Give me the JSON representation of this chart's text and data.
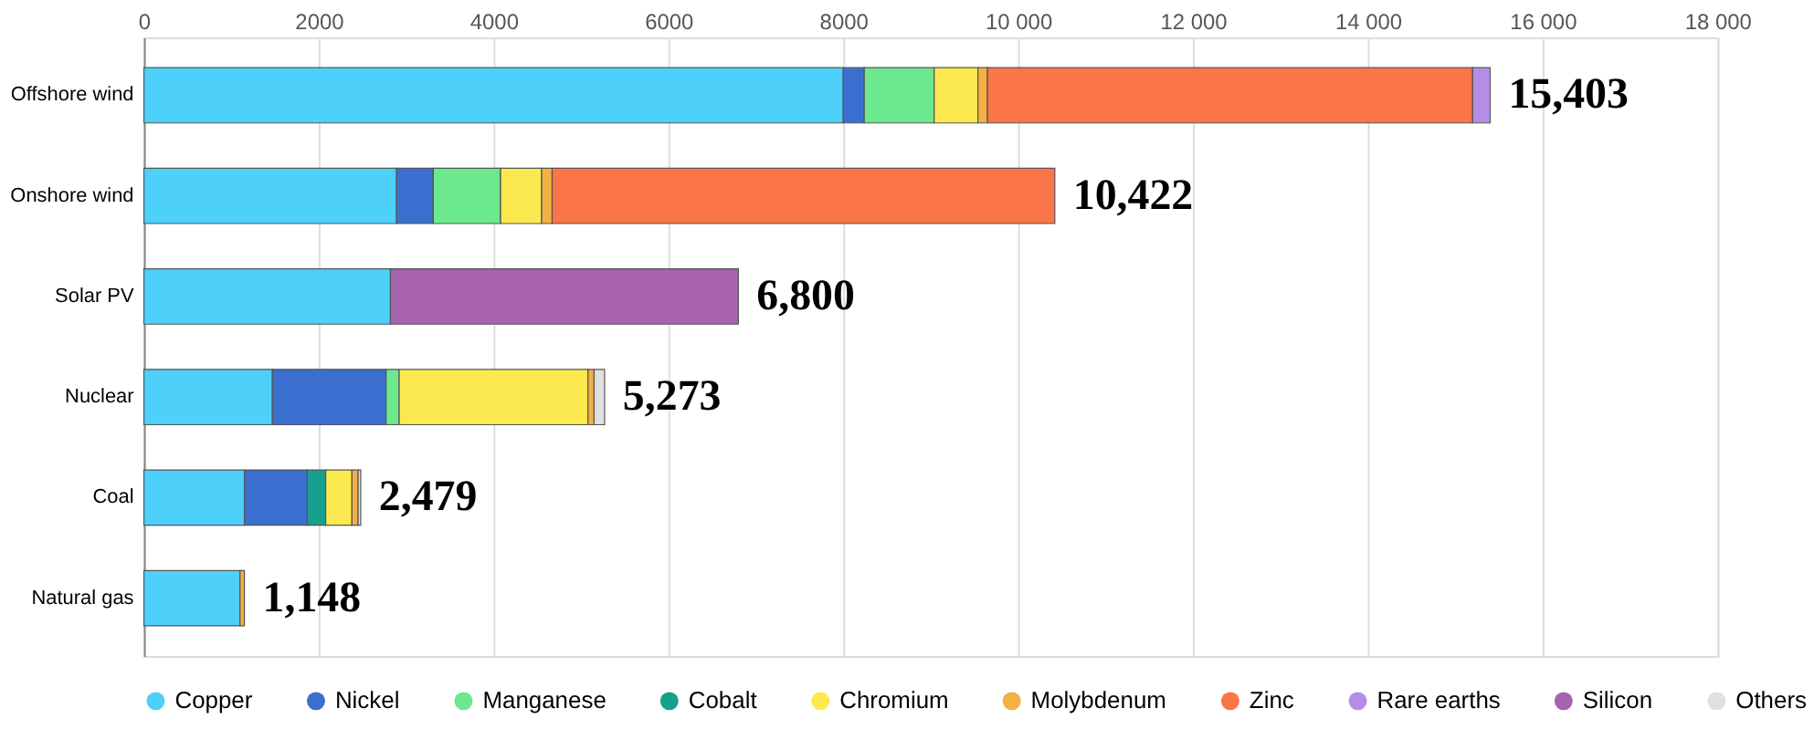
{
  "chart_data": {
    "type": "bar",
    "orientation": "horizontal",
    "stacked": true,
    "categories": [
      "Offshore wind",
      "Onshore wind",
      "Solar PV",
      "Nuclear",
      "Coal",
      "Natural gas"
    ],
    "series": [
      {
        "name": "Copper",
        "color": "#4dd0fa",
        "values": [
          8000,
          2890,
          2820,
          1470,
          1150,
          1100
        ]
      },
      {
        "name": "Nickel",
        "color": "#3a6fcf",
        "values": [
          240,
          420,
          null,
          1300,
          720,
          null
        ]
      },
      {
        "name": "Manganese",
        "color": "#6ce88e",
        "values": [
          800,
          770,
          null,
          150,
          null,
          null
        ]
      },
      {
        "name": "Cobalt",
        "color": "#17a08e",
        "values": [
          null,
          null,
          null,
          null,
          210,
          null
        ]
      },
      {
        "name": "Chromium",
        "color": "#fce94f",
        "values": [
          500,
          470,
          null,
          2160,
          300,
          null
        ]
      },
      {
        "name": "Molybdenum",
        "color": "#f4b042",
        "values": [
          110,
          120,
          null,
          70,
          70,
          50
        ]
      },
      {
        "name": "Zinc",
        "color": "#fa7548",
        "values": [
          5550,
          5750,
          null,
          null,
          null,
          null
        ]
      },
      {
        "name": "Rare earths",
        "color": "#b48ee6",
        "values": [
          200,
          null,
          null,
          null,
          null,
          null
        ]
      },
      {
        "name": "Silicon",
        "color": "#a763b0",
        "values": [
          null,
          null,
          3980,
          null,
          null,
          null
        ]
      },
      {
        "name": "Others",
        "color": "#e0e0e0",
        "values": [
          null,
          null,
          null,
          120,
          30,
          null
        ]
      }
    ],
    "totals": [
      "15,403",
      "10,422",
      "6,800",
      "5,273",
      "2,479",
      "1,148"
    ],
    "xlim": [
      0,
      18000
    ],
    "xticks": [
      0,
      2000,
      4000,
      6000,
      8000,
      {
        "value": 10000,
        "label": "10 000"
      },
      {
        "value": 12000,
        "label": "12 000"
      },
      {
        "value": 14000,
        "label": "14 000"
      },
      {
        "value": 16000,
        "label": "16 000"
      },
      {
        "value": 18000,
        "label": "18 000"
      }
    ],
    "grid": "x",
    "legend": "bottom",
    "marker": "circle"
  }
}
